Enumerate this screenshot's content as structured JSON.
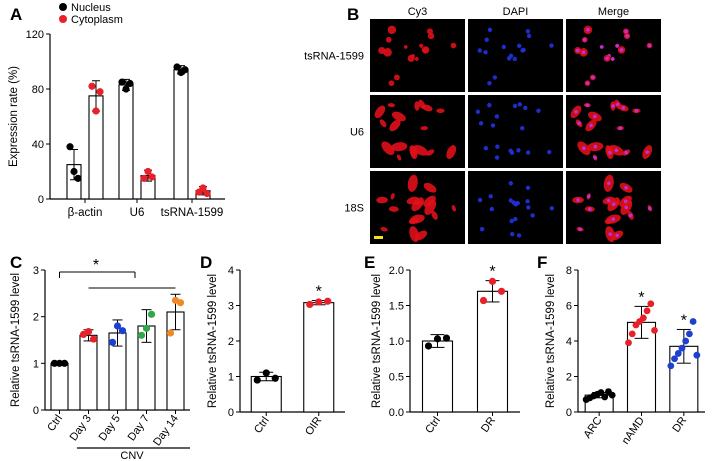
{
  "colors": {
    "black": "#000000",
    "red": "#e8202a",
    "blue": "#1f3fcf",
    "green": "#2ea84a",
    "orange": "#f08a24",
    "scale_bar": "#f2e21a"
  },
  "icons": {
    "star": "*"
  },
  "chart_data": [
    {
      "panel": "A",
      "type": "bar",
      "ylabel": "Expression rate (%)",
      "ylim": [
        0,
        120
      ],
      "yticks": [
        0,
        40,
        80,
        120
      ],
      "categories": [
        "β-actin",
        "U6",
        "tsRNA-1599"
      ],
      "legend": "top-left",
      "series": [
        {
          "name": "Nucleus",
          "color": "black",
          "values": [
            25,
            83,
            94
          ],
          "errors": [
            11,
            4,
            3
          ],
          "points": [
            [
              38,
              20,
              15
            ],
            [
              85,
              80,
              84
            ],
            [
              96,
              92,
              94
            ]
          ]
        },
        {
          "name": "Cytoplasm",
          "color": "red",
          "values": [
            75,
            17,
            6
          ],
          "errors": [
            11,
            4,
            3
          ],
          "points": [
            [
              82,
              64,
              78
            ],
            [
              15,
              20,
              16
            ],
            [
              5,
              8,
              4
            ]
          ]
        }
      ]
    },
    {
      "panel": "B",
      "type": "image-grid",
      "columns": [
        "Cy3",
        "DAPI",
        "Merge"
      ],
      "rows": [
        "tsRNA-1599",
        "U6",
        "18S"
      ]
    },
    {
      "panel": "C",
      "type": "bar",
      "ylabel": "Relative tsRNA-1599 level",
      "ylim": [
        0,
        3
      ],
      "yticks": [
        0,
        1,
        2,
        3
      ],
      "categories": [
        "Ctrl",
        "Day 3",
        "Day 5",
        "Day 7",
        "Day 14"
      ],
      "group_label": "CNV",
      "sig": "*",
      "values": [
        1.0,
        1.6,
        1.65,
        1.8,
        2.1
      ],
      "errors": [
        0.0,
        0.12,
        0.28,
        0.35,
        0.38
      ],
      "colors": [
        "black",
        "red",
        "blue",
        "green",
        "orange"
      ],
      "points": [
        [
          1.0,
          1.0,
          1.0
        ],
        [
          1.62,
          1.68,
          1.52
        ],
        [
          1.45,
          1.8,
          1.7
        ],
        [
          1.6,
          1.75,
          2.05
        ],
        [
          1.65,
          2.35,
          2.3
        ]
      ]
    },
    {
      "panel": "D",
      "type": "bar",
      "ylabel": "Relative tsRNA-1599 level",
      "ylim": [
        0,
        4
      ],
      "yticks": [
        0,
        1,
        2,
        3,
        4
      ],
      "categories": [
        "Ctrl",
        "OIR"
      ],
      "values": [
        1.0,
        3.08
      ],
      "errors": [
        0.12,
        0.06
      ],
      "colors": [
        "black",
        "red"
      ],
      "sig": [
        "",
        "*"
      ],
      "points": [
        [
          0.9,
          1.1,
          0.95
        ],
        [
          3.03,
          3.1,
          3.12
        ]
      ]
    },
    {
      "panel": "E",
      "type": "bar",
      "ylabel": "Relative tsRNA-1599 level",
      "ylim": [
        0,
        2.0
      ],
      "yticks": [
        0.0,
        0.5,
        1.0,
        1.5,
        2.0
      ],
      "categories": [
        "Ctrl",
        "DR"
      ],
      "values": [
        1.0,
        1.7
      ],
      "errors": [
        0.09,
        0.15
      ],
      "colors": [
        "black",
        "red"
      ],
      "sig": [
        "",
        "*"
      ],
      "points": [
        [
          0.93,
          1.03,
          1.04
        ],
        [
          1.57,
          1.84,
          1.7
        ]
      ]
    },
    {
      "panel": "F",
      "type": "bar",
      "ylabel": "Relative tsRNA-1599 level",
      "ylim": [
        0,
        8
      ],
      "yticks": [
        0,
        2,
        4,
        6,
        8
      ],
      "categories": [
        "ARC",
        "nAMD",
        "DR"
      ],
      "values": [
        0.95,
        5.05,
        3.7
      ],
      "errors": [
        0.15,
        0.9,
        0.95
      ],
      "colors": [
        "black",
        "red",
        "blue"
      ],
      "sig": [
        "",
        "*",
        "*"
      ],
      "points": [
        [
          0.7,
          0.8,
          0.9,
          1.0,
          1.1,
          0.85,
          1.15,
          0.95
        ],
        [
          3.9,
          4.4,
          4.9,
          5.1,
          5.3,
          5.7,
          6.1,
          4.6
        ],
        [
          2.6,
          3.0,
          3.3,
          3.6,
          4.0,
          4.4,
          5.1,
          3.2
        ]
      ]
    }
  ]
}
